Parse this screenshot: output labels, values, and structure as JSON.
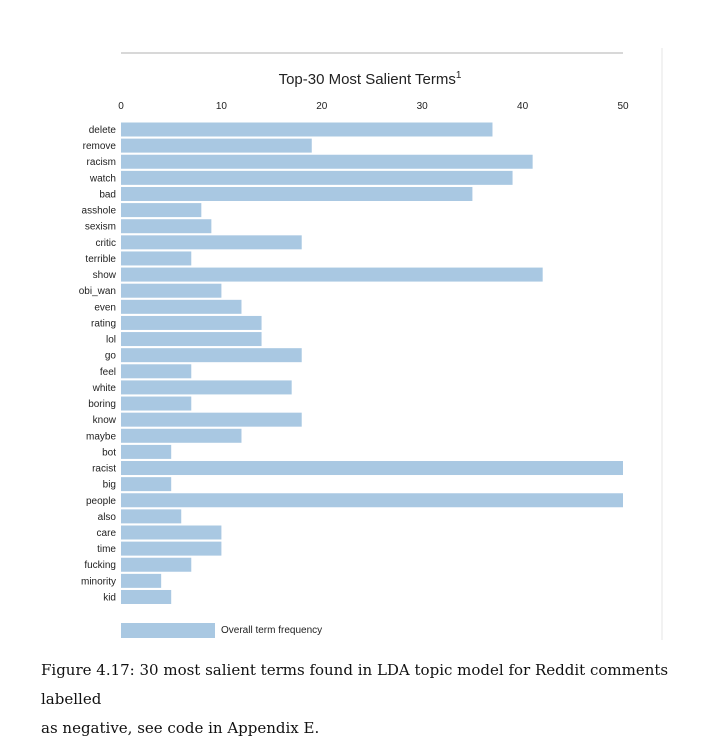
{
  "chart_data": {
    "type": "bar",
    "orientation": "horizontal",
    "title": "Top-30 Most Salient Terms",
    "title_superscript": "1",
    "xlabel": "",
    "ylabel": "",
    "xlim": [
      0,
      50
    ],
    "x_ticks": [
      0,
      10,
      20,
      30,
      40,
      50
    ],
    "x_axis_position": "top",
    "grid": false,
    "legend_position": "bottom-left",
    "bar_color": "#a9c8e2",
    "series": [
      {
        "name": "Overall term frequency",
        "values": [
          37,
          19,
          41,
          39,
          35,
          8,
          9,
          18,
          7,
          42,
          10,
          12,
          14,
          14,
          18,
          7,
          17,
          7,
          18,
          12,
          5,
          50,
          5,
          50,
          6,
          10,
          10,
          7,
          4,
          5
        ]
      }
    ],
    "categories": [
      "delete",
      "remove",
      "racism",
      "watch",
      "bad",
      "asshole",
      "sexism",
      "critic",
      "terrible",
      "show",
      "obi_wan",
      "even",
      "rating",
      "lol",
      "go",
      "feel",
      "white",
      "boring",
      "know",
      "maybe",
      "bot",
      "racist",
      "big",
      "people",
      "also",
      "care",
      "time",
      "fucking",
      "minority",
      "kid"
    ]
  },
  "caption": {
    "line1": "Figure 4.17: 30 most salient terms found in LDA topic model for Reddit comments labelled",
    "line2": "as negative, see code in Appendix E."
  }
}
